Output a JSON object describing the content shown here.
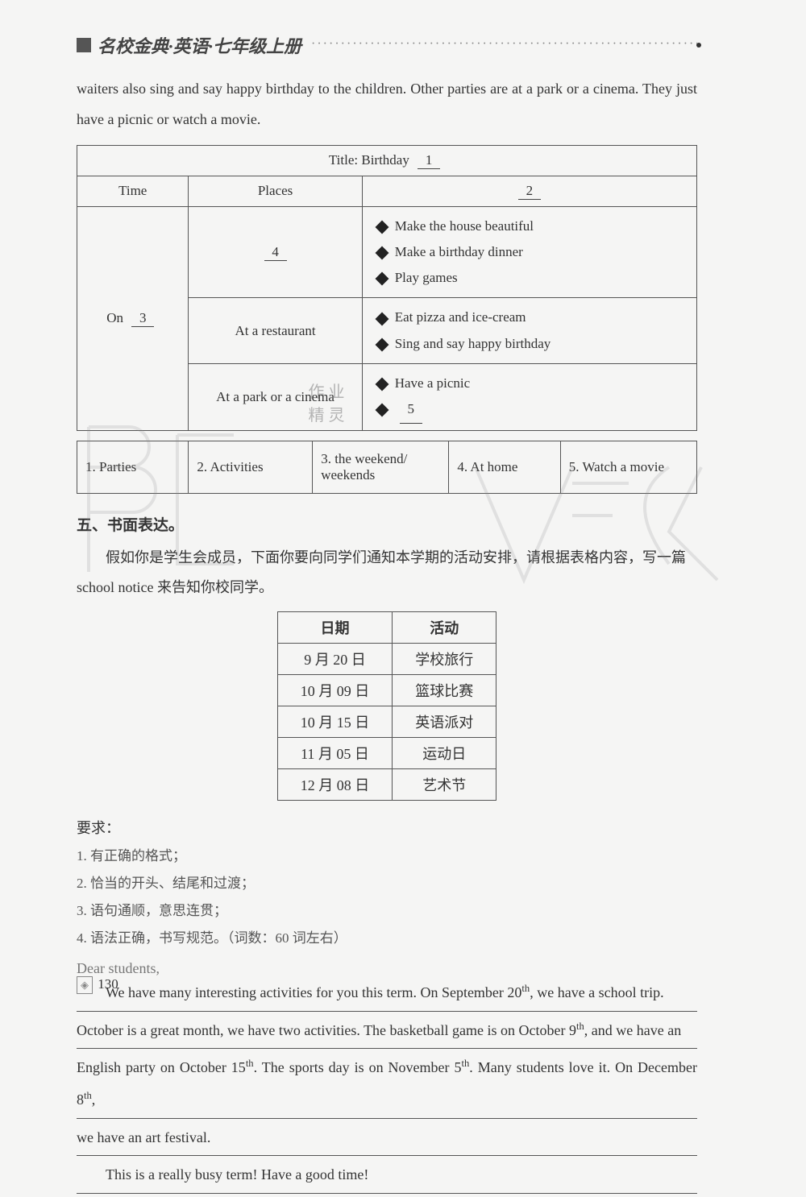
{
  "header": {
    "title": "名校金典·英语·七年级上册"
  },
  "intro": "waiters also sing and say happy birthday to the children. Other parties are at a park or a cinema. They just have a picnic or watch a movie.",
  "birthday_table": {
    "title_prefix": "Title: Birthday",
    "blank1": "1",
    "col_time": "Time",
    "col_places": "Places",
    "blank2": "2",
    "on_label": "On",
    "blank3": "3",
    "blank4": "4",
    "place2": "At a restaurant",
    "place3": "At a park or a cinema",
    "acts1": [
      "Make the house beautiful",
      "Make a birthday dinner",
      "Play games"
    ],
    "acts2": [
      "Eat pizza and ice-cream",
      "Sing and say happy birthday"
    ],
    "acts3_first": "Have a picnic",
    "blank5": "5"
  },
  "answers": {
    "a1": "1. Parties",
    "a2": "2. Activities",
    "a3": "3. the weekend/ weekends",
    "a4": "4. At home",
    "a5": "5. Watch a movie"
  },
  "section5": {
    "title": "五、书面表达。",
    "instruction": "假如你是学生会成员，下面你要向同学们通知本学期的活动安排，请根据表格内容，写一篇 school notice 来告知你校同学。",
    "schedule": {
      "columns": [
        "日期",
        "活动"
      ],
      "rows": [
        [
          "9 月 20 日",
          "学校旅行"
        ],
        [
          "10 月 09 日",
          "篮球比赛"
        ],
        [
          "10 月 15 日",
          "英语派对"
        ],
        [
          "11 月 05 日",
          "运动日"
        ],
        [
          "12 月 08 日",
          "艺术节"
        ]
      ]
    },
    "req_title": "要求：",
    "requirements": [
      "1. 有正确的格式；",
      "2. 恰当的开头、结尾和过渡；",
      "3. 语句通顺，意思连贯；",
      "4. 语法正确，书写规范。（词数：60 词左右）"
    ],
    "salutation": "Dear students,",
    "essay_lines": [
      "We have many interesting activities for you this term. On September 20<sup>th</sup>, we have a school trip.",
      "October is a great month, we have two activities. The basketball game is on October 9<sup>th</sup>, and we have an",
      "English party on October 15<sup>th</sup>. The sports day is on November 5<sup>th</sup>. Many students love it. On December 8<sup>th</sup>,",
      "we have an art festival.",
      "This is a really busy term! Have a good time!"
    ]
  },
  "page_number": "130",
  "watermark_text": "作 业\n精 灵",
  "colors": {
    "text": "#333333",
    "border": "#555555",
    "muted": "#777777",
    "background": "#f5f5f4"
  },
  "typography": {
    "body_fontsize": 18,
    "header_fontsize": 22,
    "table_fontsize": 17
  }
}
